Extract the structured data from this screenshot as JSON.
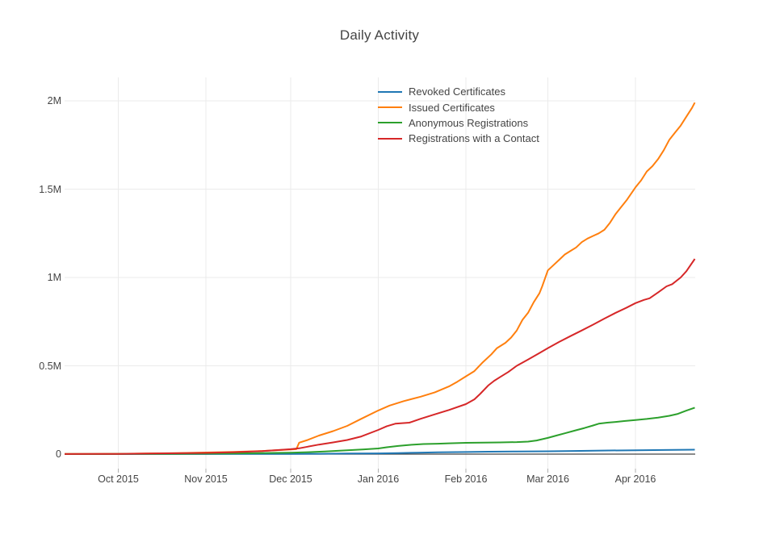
{
  "colors": {
    "background": "#ffffff",
    "text": "#444444",
    "grid": "#ebebeb",
    "zeroline": "#444444",
    "tick_mark": "#b0b0b0"
  },
  "chart_data": {
    "type": "line",
    "title": "Daily Activity",
    "grid": true,
    "legend_position": "top-center, transparent, inside plot",
    "x_axis": {
      "unit": "days from first plotted point (~mid-Sep 2015) to last (~late Apr 2016)",
      "xlim": [
        0,
        223
      ],
      "ticks": [
        {
          "x": 19,
          "label": "Oct 2015"
        },
        {
          "x": 50,
          "label": "Nov 2015"
        },
        {
          "x": 80,
          "label": "Dec 2015"
        },
        {
          "x": 111,
          "label": "Jan 2016"
        },
        {
          "x": 142,
          "label": "Feb 2016"
        },
        {
          "x": 171,
          "label": "Mar 2016"
        },
        {
          "x": 202,
          "label": "Apr 2016"
        }
      ]
    },
    "y_axis": {
      "unit": "millions (cumulative count)",
      "ylim": [
        -0.08,
        2.13
      ],
      "ticks": [
        {
          "v": 0,
          "label": "0"
        },
        {
          "v": 0.5,
          "label": "0.5M"
        },
        {
          "v": 1,
          "label": "1M"
        },
        {
          "v": 1.5,
          "label": "1.5M"
        },
        {
          "v": 2,
          "label": "2M"
        }
      ]
    },
    "series": [
      {
        "name": "Revoked Certificates",
        "color": "#1f77b4",
        "points": [
          [
            0,
            0
          ],
          [
            30,
            0.0003
          ],
          [
            60,
            0.0008
          ],
          [
            80,
            0.0012
          ],
          [
            90,
            0.002
          ],
          [
            100,
            0.003
          ],
          [
            111,
            0.004
          ],
          [
            118,
            0.006
          ],
          [
            125,
            0.008
          ],
          [
            132,
            0.01
          ],
          [
            142,
            0.012
          ],
          [
            150,
            0.0135
          ],
          [
            160,
            0.015
          ],
          [
            171,
            0.016
          ],
          [
            180,
            0.018
          ],
          [
            190,
            0.02
          ],
          [
            202,
            0.022
          ],
          [
            212,
            0.0235
          ],
          [
            223,
            0.025
          ]
        ]
      },
      {
        "name": "Issued Certificates",
        "color": "#ff7f0e",
        "points": [
          [
            0,
            0.001
          ],
          [
            10,
            0.0015
          ],
          [
            19,
            0.002
          ],
          [
            30,
            0.004
          ],
          [
            40,
            0.006
          ],
          [
            50,
            0.009
          ],
          [
            60,
            0.013
          ],
          [
            70,
            0.018
          ],
          [
            80,
            0.026
          ],
          [
            82,
            0.028
          ],
          [
            83,
            0.065
          ],
          [
            86,
            0.08
          ],
          [
            90,
            0.105
          ],
          [
            95,
            0.13
          ],
          [
            100,
            0.16
          ],
          [
            105,
            0.2
          ],
          [
            111,
            0.247
          ],
          [
            115,
            0.275
          ],
          [
            120,
            0.3
          ],
          [
            126,
            0.325
          ],
          [
            131,
            0.35
          ],
          [
            136,
            0.383
          ],
          [
            139,
            0.41
          ],
          [
            142,
            0.44
          ],
          [
            145,
            0.47
          ],
          [
            148,
            0.52
          ],
          [
            151,
            0.565
          ],
          [
            153,
            0.6
          ],
          [
            156,
            0.63
          ],
          [
            158,
            0.66
          ],
          [
            160,
            0.7
          ],
          [
            162,
            0.76
          ],
          [
            164,
            0.8
          ],
          [
            166,
            0.86
          ],
          [
            168,
            0.91
          ],
          [
            169,
            0.95
          ],
          [
            171,
            1.04
          ],
          [
            173,
            1.07
          ],
          [
            175,
            1.1
          ],
          [
            177,
            1.13
          ],
          [
            179,
            1.15
          ],
          [
            181,
            1.17
          ],
          [
            183,
            1.2
          ],
          [
            185,
            1.22
          ],
          [
            187,
            1.235
          ],
          [
            189,
            1.25
          ],
          [
            191,
            1.27
          ],
          [
            193,
            1.31
          ],
          [
            195,
            1.36
          ],
          [
            197,
            1.4
          ],
          [
            199,
            1.44
          ],
          [
            202,
            1.51
          ],
          [
            204,
            1.55
          ],
          [
            206,
            1.6
          ],
          [
            208,
            1.63
          ],
          [
            210,
            1.67
          ],
          [
            212,
            1.72
          ],
          [
            214,
            1.78
          ],
          [
            216,
            1.82
          ],
          [
            218,
            1.86
          ],
          [
            220,
            1.91
          ],
          [
            222,
            1.96
          ],
          [
            223,
            1.99
          ]
        ]
      },
      {
        "name": "Anonymous Registrations",
        "color": "#2ca02c",
        "points": [
          [
            0,
            0.0003
          ],
          [
            19,
            0.0008
          ],
          [
            40,
            0.002
          ],
          [
            60,
            0.004
          ],
          [
            80,
            0.008
          ],
          [
            86,
            0.011
          ],
          [
            92,
            0.015
          ],
          [
            100,
            0.022
          ],
          [
            106,
            0.027
          ],
          [
            111,
            0.032
          ],
          [
            114,
            0.039
          ],
          [
            118,
            0.046
          ],
          [
            122,
            0.052
          ],
          [
            127,
            0.057
          ],
          [
            132,
            0.059
          ],
          [
            136,
            0.061
          ],
          [
            142,
            0.064
          ],
          [
            148,
            0.065
          ],
          [
            154,
            0.066
          ],
          [
            160,
            0.068
          ],
          [
            164,
            0.071
          ],
          [
            167,
            0.077
          ],
          [
            171,
            0.092
          ],
          [
            174,
            0.105
          ],
          [
            177,
            0.118
          ],
          [
            181,
            0.135
          ],
          [
            184,
            0.148
          ],
          [
            187,
            0.162
          ],
          [
            189,
            0.172
          ],
          [
            192,
            0.178
          ],
          [
            195,
            0.182
          ],
          [
            198,
            0.187
          ],
          [
            202,
            0.193
          ],
          [
            206,
            0.199
          ],
          [
            210,
            0.207
          ],
          [
            214,
            0.217
          ],
          [
            217,
            0.228
          ],
          [
            220,
            0.246
          ],
          [
            223,
            0.263
          ]
        ]
      },
      {
        "name": "Registrations with a Contact",
        "color": "#d62728",
        "points": [
          [
            0,
            0.0005
          ],
          [
            10,
            0.001
          ],
          [
            19,
            0.0015
          ],
          [
            30,
            0.003
          ],
          [
            40,
            0.005
          ],
          [
            50,
            0.007
          ],
          [
            60,
            0.011
          ],
          [
            70,
            0.017
          ],
          [
            80,
            0.028
          ],
          [
            83,
            0.033
          ],
          [
            86,
            0.042
          ],
          [
            90,
            0.054
          ],
          [
            95,
            0.066
          ],
          [
            100,
            0.08
          ],
          [
            105,
            0.1
          ],
          [
            111,
            0.137
          ],
          [
            114,
            0.158
          ],
          [
            117,
            0.172
          ],
          [
            122,
            0.178
          ],
          [
            126,
            0.2
          ],
          [
            131,
            0.225
          ],
          [
            136,
            0.25
          ],
          [
            142,
            0.283
          ],
          [
            145,
            0.31
          ],
          [
            147,
            0.34
          ],
          [
            150,
            0.39
          ],
          [
            152,
            0.415
          ],
          [
            154,
            0.435
          ],
          [
            157,
            0.465
          ],
          [
            160,
            0.5
          ],
          [
            164,
            0.535
          ],
          [
            168,
            0.572
          ],
          [
            171,
            0.6
          ],
          [
            175,
            0.635
          ],
          [
            179,
            0.668
          ],
          [
            183,
            0.7
          ],
          [
            187,
            0.733
          ],
          [
            191,
            0.767
          ],
          [
            195,
            0.8
          ],
          [
            199,
            0.83
          ],
          [
            202,
            0.855
          ],
          [
            205,
            0.873
          ],
          [
            207,
            0.882
          ],
          [
            210,
            0.915
          ],
          [
            213,
            0.95
          ],
          [
            215,
            0.962
          ],
          [
            218,
            1.0
          ],
          [
            220,
            1.035
          ],
          [
            223,
            1.105
          ]
        ]
      }
    ]
  }
}
